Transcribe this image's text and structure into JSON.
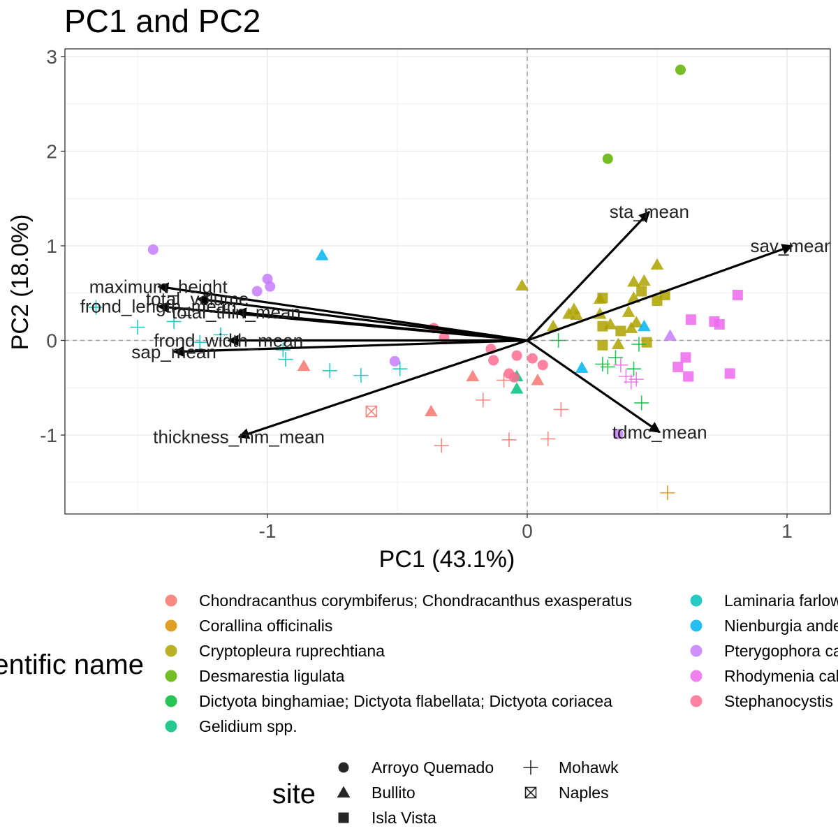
{
  "chart_data": {
    "type": "scatter",
    "title": "PC1 and PC2",
    "xlabel": "PC1 (43.1%)",
    "ylabel": "PC2 (18.0%)",
    "xlim": [
      -1.78,
      1.16
    ],
    "ylim": [
      -1.82,
      3.07
    ],
    "x_ticks": [
      -1,
      0,
      1
    ],
    "y_ticks": [
      -1,
      0,
      1,
      2,
      3
    ],
    "grid": true,
    "reference_lines": {
      "x": 0,
      "y": 0,
      "style": "dashed"
    },
    "loadings": [
      {
        "label": "sta_mean",
        "x": 0.47,
        "y": 1.36
      },
      {
        "label": "sav_mean",
        "x": 1.02,
        "y": 1.0
      },
      {
        "label": "tdmc_mean",
        "x": 0.51,
        "y": -0.97
      },
      {
        "label": "thickness_mm_mean",
        "x": -1.11,
        "y": -1.02
      },
      {
        "label": "sap_mean",
        "x": -1.36,
        "y": -0.12
      },
      {
        "label": "frond_width_mean",
        "x": -1.15,
        "y": 0.0
      },
      {
        "label": "maximum_height",
        "x": -1.42,
        "y": 0.57
      },
      {
        "label": "frond_length_mean",
        "x": -1.42,
        "y": 0.36
      },
      {
        "label": "total_volume",
        "x": -1.27,
        "y": 0.44
      },
      {
        "label": "total_thin_mean",
        "x": -1.12,
        "y": 0.3
      }
    ],
    "series": [
      {
        "name": "Chondracanthus corymbiferus; Chondracanthus exasperatus",
        "color": "#F8766D",
        "points": [
          {
            "x": -0.86,
            "y": -0.27,
            "site": "Bullito"
          },
          {
            "x": -0.37,
            "y": -0.75,
            "site": "Bullito"
          },
          {
            "x": -0.21,
            "y": -0.38,
            "site": "Bullito"
          },
          {
            "x": 0.04,
            "y": -0.42,
            "site": "Bullito"
          },
          {
            "x": -0.33,
            "y": -1.11,
            "site": "Mohawk"
          },
          {
            "x": -0.17,
            "y": -0.63,
            "site": "Mohawk"
          },
          {
            "x": -0.09,
            "y": -0.42,
            "site": "Mohawk"
          },
          {
            "x": -0.07,
            "y": -1.05,
            "site": "Mohawk"
          },
          {
            "x": 0.08,
            "y": -1.04,
            "site": "Mohawk"
          },
          {
            "x": 0.13,
            "y": -0.73,
            "site": "Mohawk"
          },
          {
            "x": -0.6,
            "y": -0.75,
            "site": "Naples"
          }
        ]
      },
      {
        "name": "Corallina officinalis",
        "color": "#DB8E00",
        "points": [
          {
            "x": 0.54,
            "y": -1.61,
            "site": "Mohawk"
          }
        ]
      },
      {
        "name": "Cryptopleura ruprechtiana",
        "color": "#AEA200",
        "points": [
          {
            "x": -0.02,
            "y": 0.58,
            "site": "Bullito"
          },
          {
            "x": 0.1,
            "y": 0.15,
            "site": "Bullito"
          },
          {
            "x": 0.16,
            "y": 0.28,
            "site": "Bullito"
          },
          {
            "x": 0.18,
            "y": 0.33,
            "site": "Bullito"
          },
          {
            "x": 0.19,
            "y": 0.27,
            "site": "Bullito"
          },
          {
            "x": 0.28,
            "y": 0.44,
            "site": "Bullito"
          },
          {
            "x": 0.28,
            "y": 0.28,
            "site": "Bullito"
          },
          {
            "x": 0.32,
            "y": 0.17,
            "site": "Bullito"
          },
          {
            "x": 0.35,
            "y": -0.04,
            "site": "Bullito"
          },
          {
            "x": 0.39,
            "y": 0.3,
            "site": "Bullito"
          },
          {
            "x": 0.4,
            "y": 0.13,
            "site": "Bullito"
          },
          {
            "x": 0.41,
            "y": 0.45,
            "site": "Bullito"
          },
          {
            "x": 0.41,
            "y": 0.62,
            "site": "Bullito"
          },
          {
            "x": 0.42,
            "y": 0.19,
            "site": "Bullito"
          },
          {
            "x": 0.45,
            "y": 0.63,
            "site": "Bullito"
          },
          {
            "x": 0.5,
            "y": 0.8,
            "site": "Bullito"
          },
          {
            "x": 0.29,
            "y": 0.45,
            "site": "Isla Vista"
          },
          {
            "x": 0.29,
            "y": 0.15,
            "site": "Isla Vista"
          },
          {
            "x": 0.29,
            "y": -0.05,
            "site": "Isla Vista"
          },
          {
            "x": 0.36,
            "y": 0.1,
            "site": "Isla Vista"
          },
          {
            "x": 0.44,
            "y": 0.52,
            "site": "Isla Vista"
          },
          {
            "x": 0.46,
            "y": -0.02,
            "site": "Isla Vista"
          },
          {
            "x": 0.5,
            "y": 0.42,
            "site": "Isla Vista"
          },
          {
            "x": 0.53,
            "y": 0.48,
            "site": "Isla Vista"
          }
        ]
      },
      {
        "name": "Desmarestia ligulata",
        "color": "#5EB300",
        "points": [
          {
            "x": 0.59,
            "y": 2.86,
            "site": "Arroyo Quemado"
          },
          {
            "x": 0.31,
            "y": 1.92,
            "site": "Arroyo Quemado"
          }
        ]
      },
      {
        "name": "Dictyota binghamiae; Dictyota flabellata; Dictyota coriacea",
        "color": "#00BA38",
        "points": [
          {
            "x": 0.12,
            "y": 0.0,
            "site": "Mohawk"
          },
          {
            "x": 0.29,
            "y": -0.25,
            "site": "Mohawk"
          },
          {
            "x": 0.31,
            "y": -0.28,
            "site": "Mohawk"
          },
          {
            "x": 0.34,
            "y": -0.18,
            "site": "Mohawk"
          },
          {
            "x": 0.41,
            "y": -0.3,
            "site": "Mohawk"
          },
          {
            "x": 0.43,
            "y": -0.04,
            "site": "Mohawk"
          },
          {
            "x": 0.44,
            "y": -0.66,
            "site": "Mohawk"
          }
        ]
      },
      {
        "name": "Gelidium spp.",
        "color": "#00BF7D",
        "points": [
          {
            "x": -0.04,
            "y": -0.38,
            "site": "Bullito"
          },
          {
            "x": -0.04,
            "y": -0.51,
            "site": "Bullito"
          }
        ]
      },
      {
        "name": "Laminaria farlowii",
        "color": "#00C0B8",
        "points": [
          {
            "x": -1.66,
            "y": 0.35,
            "site": "Mohawk"
          },
          {
            "x": -1.5,
            "y": 0.14,
            "site": "Mohawk"
          },
          {
            "x": -1.36,
            "y": 0.2,
            "site": "Mohawk"
          },
          {
            "x": -1.26,
            "y": -0.02,
            "site": "Mohawk"
          },
          {
            "x": -1.18,
            "y": 0.06,
            "site": "Mohawk"
          },
          {
            "x": -0.94,
            "y": -0.1,
            "site": "Mohawk"
          },
          {
            "x": -0.93,
            "y": -0.2,
            "site": "Mohawk"
          },
          {
            "x": -0.76,
            "y": -0.32,
            "site": "Mohawk"
          },
          {
            "x": -0.64,
            "y": -0.37,
            "site": "Mohawk"
          },
          {
            "x": -0.49,
            "y": -0.3,
            "site": "Mohawk"
          }
        ]
      },
      {
        "name": "Nienburgia andersoniana",
        "color": "#00B4EF",
        "points": [
          {
            "x": -0.79,
            "y": 0.9,
            "site": "Bullito"
          },
          {
            "x": 0.21,
            "y": -0.29,
            "site": "Bullito"
          },
          {
            "x": 0.45,
            "y": 0.15,
            "site": "Bullito"
          }
        ]
      },
      {
        "name": "Pterygophora californica",
        "color": "#C77CFF",
        "points": [
          {
            "x": -1.44,
            "y": 0.96,
            "site": "Arroyo Quemado"
          },
          {
            "x": -1.0,
            "y": 0.65,
            "site": "Arroyo Quemado"
          },
          {
            "x": -0.99,
            "y": 0.57,
            "site": "Arroyo Quemado"
          },
          {
            "x": -1.04,
            "y": 0.52,
            "site": "Arroyo Quemado"
          },
          {
            "x": -0.51,
            "y": -0.22,
            "site": "Arroyo Quemado"
          },
          {
            "x": 0.35,
            "y": -0.99,
            "site": "Arroyo Quemado"
          },
          {
            "x": 0.55,
            "y": 0.05,
            "site": "Bullito"
          }
        ]
      },
      {
        "name": "Rhodymenia californica",
        "color": "#ED68ED",
        "points": [
          {
            "x": 0.63,
            "y": 0.22,
            "site": "Isla Vista"
          },
          {
            "x": 0.58,
            "y": -0.28,
            "site": "Isla Vista"
          },
          {
            "x": 0.61,
            "y": -0.18,
            "site": "Isla Vista"
          },
          {
            "x": 0.62,
            "y": -0.38,
            "site": "Isla Vista"
          },
          {
            "x": 0.72,
            "y": 0.2,
            "site": "Isla Vista"
          },
          {
            "x": 0.74,
            "y": 0.17,
            "site": "Isla Vista"
          },
          {
            "x": 0.78,
            "y": -0.35,
            "site": "Isla Vista"
          },
          {
            "x": 0.81,
            "y": 0.48,
            "site": "Isla Vista"
          },
          {
            "x": 0.36,
            "y": -0.26,
            "site": "Mohawk"
          },
          {
            "x": 0.38,
            "y": -0.38,
            "site": "Mohawk"
          },
          {
            "x": 0.4,
            "y": -0.44,
            "site": "Mohawk"
          },
          {
            "x": 0.42,
            "y": -0.41,
            "site": "Mohawk"
          }
        ]
      },
      {
        "name": "Stephanocystis osmundacea",
        "color": "#FF6C91",
        "points": [
          {
            "x": -0.36,
            "y": 0.13,
            "site": "Arroyo Quemado"
          },
          {
            "x": -0.32,
            "y": 0.03,
            "site": "Arroyo Quemado"
          },
          {
            "x": -0.14,
            "y": -0.09,
            "site": "Arroyo Quemado"
          },
          {
            "x": -0.13,
            "y": -0.21,
            "site": "Arroyo Quemado"
          },
          {
            "x": -0.04,
            "y": -0.16,
            "site": "Arroyo Quemado"
          },
          {
            "x": -0.07,
            "y": -0.35,
            "site": "Arroyo Quemado"
          },
          {
            "x": 0.02,
            "y": -0.19,
            "site": "Arroyo Quemado"
          },
          {
            "x": 0.06,
            "y": -0.26,
            "site": "Arroyo Quemado"
          },
          {
            "x": -0.05,
            "y": -0.39,
            "site": "Arroyo Quemado"
          }
        ]
      }
    ],
    "legend_color": {
      "title": "scientific name",
      "entries": [
        "Chondracanthus corymbiferus; Chondracanthus exasperatus",
        "Corallina officinalis",
        "Cryptopleura ruprechtiana",
        "Desmarestia ligulata",
        "Dictyota binghamiae; Dictyota flabellata; Dictyota coriacea",
        "Gelidium spp.",
        "Laminaria farlowii",
        "Nienburgia andersoniana",
        "Pterygophora californica",
        "Rhodymenia californica",
        "Stephanocystis osmundacea"
      ],
      "placement": "bottom"
    },
    "legend_shape": {
      "title": "site",
      "entries": [
        {
          "label": "Arroyo Quemado",
          "shape": "circle"
        },
        {
          "label": "Bullito",
          "shape": "triangle"
        },
        {
          "label": "Isla Vista",
          "shape": "square"
        },
        {
          "label": "Mohawk",
          "shape": "plus"
        },
        {
          "label": "Naples",
          "shape": "boxed-x"
        }
      ],
      "placement": "bottom"
    }
  }
}
